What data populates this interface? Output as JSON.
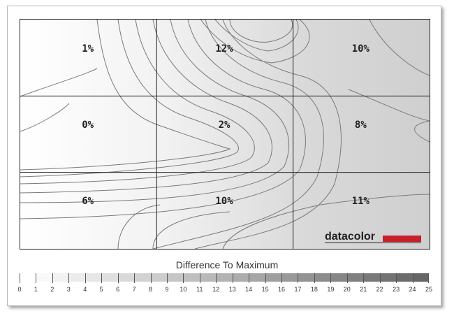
{
  "chart_data": {
    "type": "heatmap",
    "title": "",
    "grid_rows": 3,
    "grid_cols": 3,
    "cells": [
      [
        "1%",
        "12%",
        "10%"
      ],
      [
        "0%",
        "2%",
        "8%"
      ],
      [
        "6%",
        "10%",
        "11%"
      ]
    ],
    "values": [
      [
        1,
        12,
        10
      ],
      [
        0,
        2,
        8
      ],
      [
        6,
        10,
        11
      ]
    ],
    "contour_lines": true,
    "logo": "datacolor",
    "scale": {
      "title": "Difference To Maximum",
      "min": 0,
      "max": 25,
      "ticks": [
        "0",
        "1",
        "2",
        "3",
        "4",
        "5",
        "6",
        "7",
        "8",
        "9",
        "10",
        "11",
        "12",
        "13",
        "14",
        "15",
        "16",
        "17",
        "18",
        "19",
        "20",
        "21",
        "22",
        "23",
        "24",
        "25"
      ]
    },
    "colors": {
      "logo_accent": "#c8202a",
      "scale_low": "#ffffff",
      "scale_high": "#666666",
      "contour": "#7a7a7a"
    }
  }
}
